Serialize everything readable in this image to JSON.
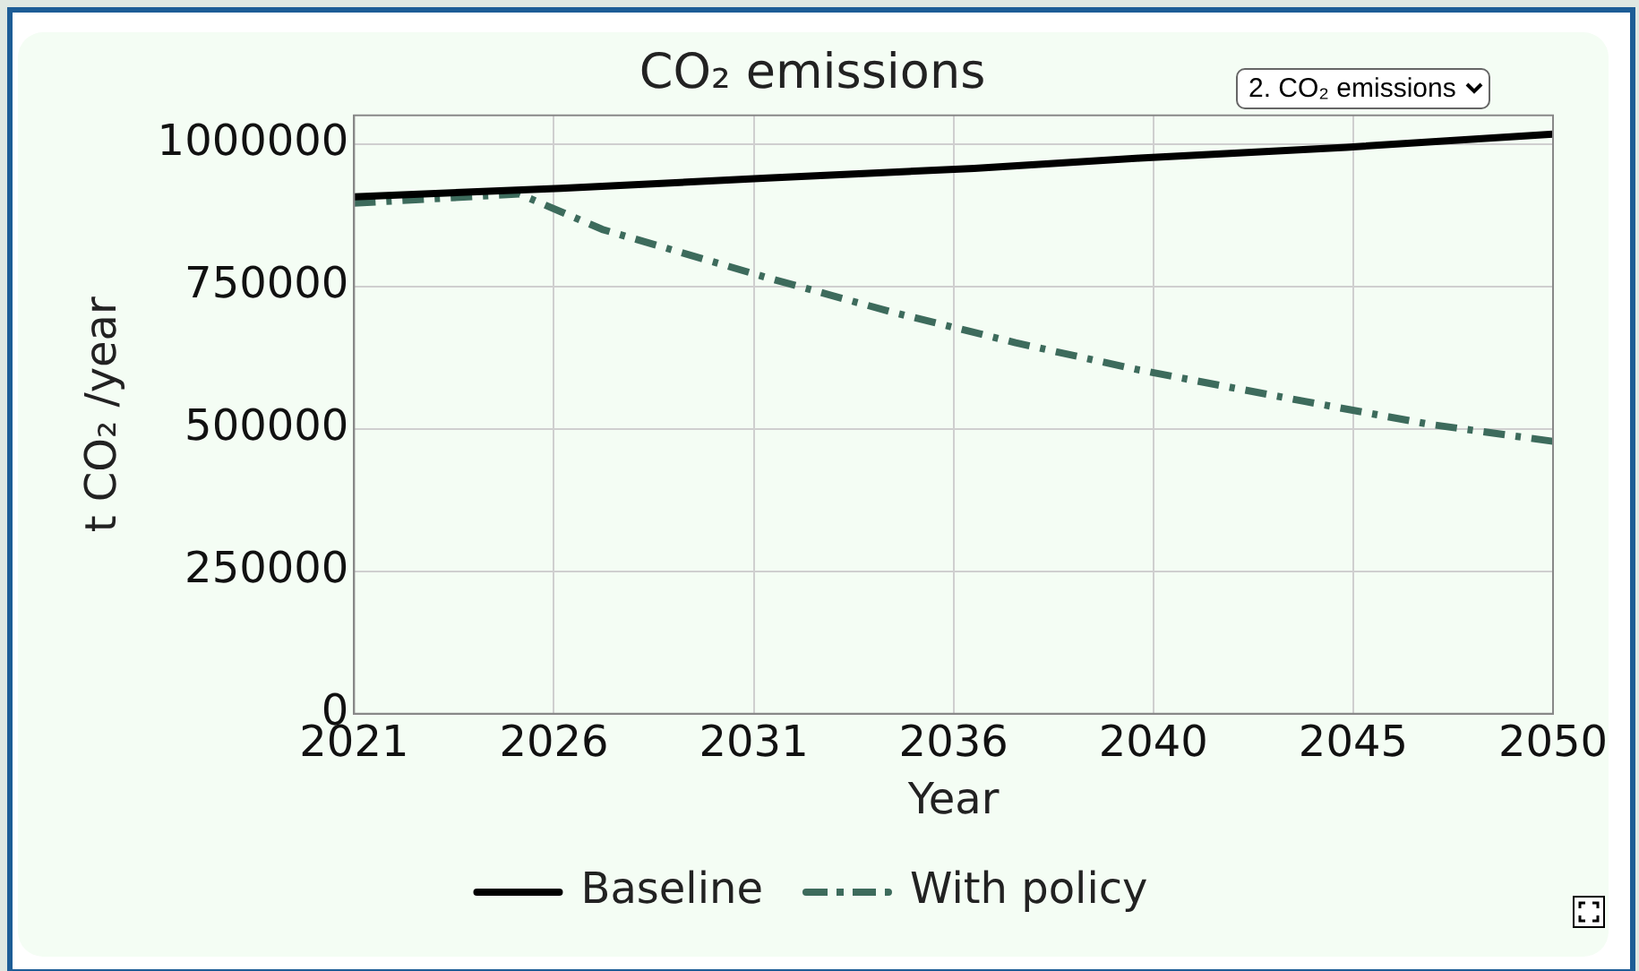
{
  "chart_data": {
    "type": "line",
    "title": "CO₂ emissions",
    "xlabel": "Year",
    "ylabel": "t CO₂ /year",
    "annotations": [
      "2. CO₂ emissions"
    ],
    "series": [
      {
        "name": "Baseline",
        "color": "#000000",
        "line_style": "solid",
        "x": [
          2021,
          2026,
          2031,
          2036,
          2040,
          2045,
          2050
        ],
        "values": [
          907000,
          922000,
          940000,
          957000,
          975000,
          994000,
          1017000
        ]
      },
      {
        "name": "With policy",
        "color": "#3d6b5c",
        "line_style": "dashed",
        "x": [
          2021,
          2025,
          2027,
          2031,
          2034,
          2037,
          2040,
          2044,
          2047,
          2050
        ],
        "values": [
          896000,
          912000,
          850000,
          765000,
          705000,
          651000,
          603000,
          548000,
          508000,
          478000
        ]
      }
    ],
    "xlim": [
      2021,
      2050
    ],
    "xticks": [
      2021,
      {
        "value": 2025.833,
        "label": "2026"
      },
      {
        "value": 2030.667,
        "label": "2031"
      },
      {
        "value": 2035.5,
        "label": "2036"
      },
      {
        "value": 2040.333,
        "label": "2040"
      },
      {
        "value": 2045.167,
        "label": "2045"
      },
      2050
    ],
    "ylim": [
      0,
      1050000
    ],
    "yticks": [
      0,
      250000,
      500000,
      750000,
      1000000
    ],
    "grid": true,
    "legend": "bottom",
    "marker": "none"
  }
}
